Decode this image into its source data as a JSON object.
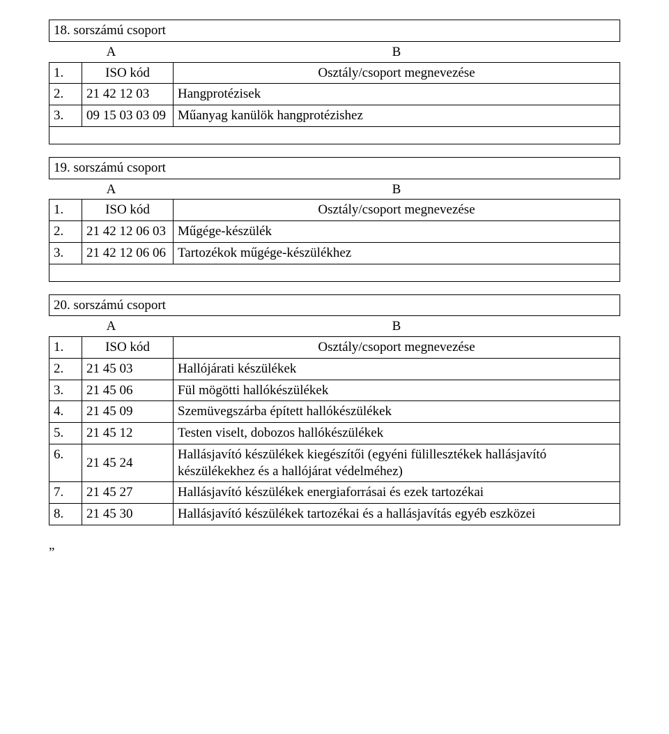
{
  "group18": {
    "title": "18. sorszámú csoport",
    "A": "A",
    "B": "B",
    "r1_num": "1.",
    "r1_code": "ISO kód",
    "r1_desc": "Osztály/csoport megnevezése",
    "r2_num": "2.",
    "r2_code": "21 42 12 03",
    "r2_desc": "Hangprotézisek",
    "r3_num": "3.",
    "r3_code": "09 15 03 03 09",
    "r3_desc": "Műanyag kanülök hangprotézishez"
  },
  "group19": {
    "title": "19. sorszámú csoport",
    "A": "A",
    "B": "B",
    "r1_num": "1.",
    "r1_code": "ISO kód",
    "r1_desc": "Osztály/csoport megnevezése",
    "r2_num": "2.",
    "r2_code": "21 42 12 06 03",
    "r2_desc": "Műgége-készülék",
    "r3_num": "3.",
    "r3_code": "21 42 12 06 06",
    "r3_desc": "Tartozékok műgége-készülékhez"
  },
  "group20": {
    "title": "20. sorszámú csoport",
    "A": "A",
    "B": "B",
    "r1_num": "1.",
    "r1_code": "ISO kód",
    "r1_desc": "Osztály/csoport megnevezése",
    "r2_num": "2.",
    "r2_code": "21 45 03",
    "r2_desc": "Hallójárati készülékek",
    "r3_num": "3.",
    "r3_code": "21 45 06",
    "r3_desc": "Fül mögötti hallókészülékek",
    "r4_num": "4.",
    "r4_code": "21 45 09",
    "r4_desc": "Szemüvegszárba épített hallókészülékek",
    "r5_num": "5.",
    "r5_code": "21 45 12",
    "r5_desc": "Testen viselt, dobozos hallókészülékek",
    "r6_num": "6.",
    "r6_code": "21 45 24",
    "r6_desc": "Hallásjavító készülékek kiegészítői (egyéni fülillesztékek hallásjavító készülékekhez és a hallójárat védelméhez)",
    "r7_num": "7.",
    "r7_code": "21 45 27",
    "r7_desc": "Hallásjavító készülékek energiaforrásai és ezek tartozékai",
    "r8_num": "8.",
    "r8_code": "21 45 30",
    "r8_desc": "Hallásjavító készülékek tartozékai és a hallásjavítás egyéb eszközei"
  },
  "closing_quote": "„"
}
